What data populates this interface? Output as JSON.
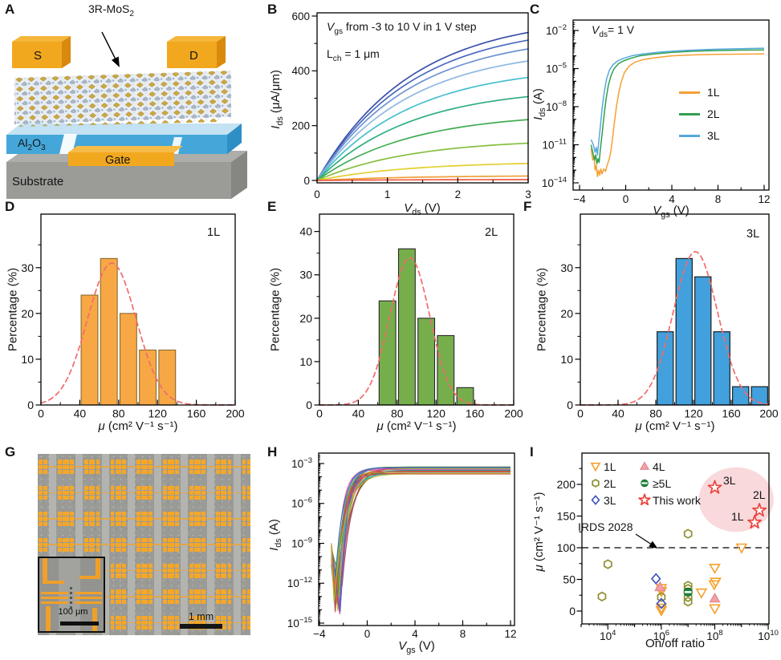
{
  "panels": {
    "A": {
      "label": "A",
      "crystal_label": {
        "main": "3R-MoS",
        "sub": "2"
      },
      "source": "S",
      "drain": "D",
      "oxide": {
        "p1": "Al",
        "s1": "2",
        "p2": "O",
        "s2": "3"
      },
      "gate": "Gate",
      "substrate": "Substrate"
    },
    "B": {
      "label": "B",
      "ann_line1": {
        "it": "V",
        "sub": "gs",
        "rest": " from -3 to 10 V in 1 V step"
      },
      "ann_line2": {
        "main": "L",
        "sub": "ch",
        "rest": " = 1 μm"
      },
      "ylabel": {
        "it": "I",
        "sub": "ds",
        "rest": " (μA/μm)"
      },
      "xlabel": {
        "it": "V",
        "sub": "ds",
        "rest": " (V)"
      }
    },
    "C": {
      "label": "C",
      "ann": {
        "it": "V",
        "sub": "ds",
        "rest": "= 1 V"
      },
      "ylabel": {
        "it": "I",
        "sub": "ds",
        "rest": " (A)"
      },
      "xlabel": {
        "it": "V",
        "sub": "gs",
        "rest": " (V)"
      },
      "legend": [
        {
          "name": "1L"
        },
        {
          "name": "2L"
        },
        {
          "name": "3L"
        }
      ]
    },
    "D": {
      "label": "D",
      "corner": "1L",
      "ylabel": "Percentage (%)",
      "xlabel": {
        "it": "μ",
        "rest": " (cm² V⁻¹ s⁻¹)"
      }
    },
    "E": {
      "label": "E",
      "corner": "2L",
      "ylabel": "Percentage (%)",
      "xlabel": {
        "it": "μ",
        "rest": " (cm² V⁻¹ s⁻¹)"
      }
    },
    "F": {
      "label": "F",
      "corner": "3L",
      "ylabel": "Percentage (%)",
      "xlabel": {
        "it": "μ",
        "rest": " (cm² V⁻¹ s⁻¹)"
      }
    },
    "G": {
      "label": "G",
      "inset_scale": "100 μm",
      "main_scale": "1 mm"
    },
    "H": {
      "label": "H",
      "ylabel": {
        "it": "I",
        "sub": "ds",
        "rest": " (A)"
      },
      "xlabel": {
        "it": "V",
        "sub": "gs",
        "rest": " (V)"
      }
    },
    "I": {
      "label": "I",
      "ylabel": {
        "it": "μ",
        "rest": " (cm² V⁻¹ s⁻¹)"
      },
      "xlabel": "On/off ratio",
      "irds_label": "IRDS 2028",
      "legend": [
        {
          "name": "1L"
        },
        {
          "name": "2L"
        },
        {
          "name": "3L"
        },
        {
          "name": "4L"
        },
        {
          "name": "≥5L"
        },
        {
          "name": "This work"
        }
      ],
      "star_labels": [
        "3L",
        "2L",
        "1L"
      ]
    }
  },
  "chart_data": [
    {
      "panel": "B",
      "type": "line",
      "title": "Output characteristics",
      "xlabel": "Vds (V)",
      "ylabel": "Ids (uA/um)",
      "xlim": [
        0,
        3
      ],
      "ylim": [
        0,
        600
      ],
      "xticks": [
        0,
        1,
        2,
        3
      ],
      "yticks": [
        0,
        200,
        400,
        600
      ],
      "annotation": "Vgs from -3 to 10 V in 1 V step; Lch = 1 um",
      "series": [
        {
          "vgs_v": 10,
          "end_uA_um": 540,
          "color": "#3A50A8"
        },
        {
          "vgs_v": 9,
          "end_uA_um": 512,
          "color": "#4A6AC0"
        },
        {
          "vgs_v": 8,
          "end_uA_um": 480,
          "color": "#6E93D2"
        },
        {
          "vgs_v": 7,
          "end_uA_um": 436,
          "color": "#8FB8E2"
        },
        {
          "vgs_v": 6,
          "end_uA_um": 376,
          "color": "#46BFCE"
        },
        {
          "vgs_v": 5,
          "end_uA_um": 306,
          "color": "#2FAE7E"
        },
        {
          "vgs_v": 4,
          "end_uA_um": 222,
          "color": "#44AD54"
        },
        {
          "vgs_v": 3,
          "end_uA_um": 136,
          "color": "#86BE3F"
        },
        {
          "vgs_v": 2,
          "end_uA_um": 62,
          "color": "#E3CF2F"
        },
        {
          "vgs_v": 1,
          "end_uA_um": 16,
          "color": "#F0A03C"
        },
        {
          "vgs_v": 0,
          "end_uA_um": 3,
          "color": "#EE5B42"
        }
      ]
    },
    {
      "panel": "C",
      "type": "line",
      "title": "Transfer curves, Vds = 1 V",
      "xlabel": "Vgs (V)",
      "ylabel": "Ids (A), log scale",
      "xticks": [
        -4,
        0,
        4,
        8,
        12
      ],
      "ytick_exps": [
        -2,
        -5,
        -8,
        -11,
        -14
      ],
      "series": [
        {
          "name": "1L",
          "color": "#F5A033",
          "points": [
            [
              -3,
              -11.3
            ],
            [
              -2.85,
              -12.2
            ],
            [
              -2.75,
              -11.9
            ],
            [
              -2.65,
              -13.0
            ],
            [
              -2.55,
              -12.6
            ],
            [
              -2.45,
              -13.5
            ],
            [
              -2.35,
              -13.0
            ],
            [
              -2.25,
              -13.4
            ],
            [
              -2.15,
              -12.9
            ],
            [
              -2.05,
              -13.3
            ],
            [
              -1.9,
              -12.9
            ],
            [
              -1.75,
              -13.1
            ],
            [
              -1.6,
              -12.6
            ],
            [
              -1.45,
              -12.2
            ],
            [
              -1.3,
              -11.6
            ],
            [
              -1.15,
              -10.6
            ],
            [
              -1.0,
              -9.4
            ],
            [
              -0.8,
              -8.0
            ],
            [
              -0.6,
              -6.9
            ],
            [
              -0.4,
              -6.1
            ],
            [
              -0.1,
              -5.3
            ],
            [
              0.3,
              -4.8
            ],
            [
              0.8,
              -4.5
            ],
            [
              1.5,
              -4.3
            ],
            [
              2.5,
              -4.15
            ],
            [
              4,
              -4.0
            ],
            [
              6,
              -3.92
            ],
            [
              8,
              -3.88
            ],
            [
              10,
              -3.86
            ],
            [
              12,
              -3.85
            ]
          ]
        },
        {
          "name": "2L",
          "color": "#2FA04E",
          "points": [
            [
              -3,
              -11.0
            ],
            [
              -2.85,
              -11.6
            ],
            [
              -2.7,
              -12.2
            ],
            [
              -2.6,
              -11.8
            ],
            [
              -2.5,
              -12.5
            ],
            [
              -2.4,
              -12.1
            ],
            [
              -2.3,
              -12.4
            ],
            [
              -2.2,
              -11.4
            ],
            [
              -2.05,
              -10.2
            ],
            [
              -1.9,
              -8.9
            ],
            [
              -1.7,
              -7.4
            ],
            [
              -1.5,
              -6.3
            ],
            [
              -1.25,
              -5.5
            ],
            [
              -1.0,
              -5.0
            ],
            [
              -0.6,
              -4.6
            ],
            [
              -0.2,
              -4.4
            ],
            [
              0.4,
              -4.2
            ],
            [
              1.2,
              -4.0
            ],
            [
              2.5,
              -3.85
            ],
            [
              4,
              -3.72
            ],
            [
              6,
              -3.63
            ],
            [
              8,
              -3.58
            ],
            [
              10,
              -3.55
            ],
            [
              12,
              -3.53
            ]
          ]
        },
        {
          "name": "3L",
          "color": "#57A8DC",
          "points": [
            [
              -3,
              -10.6
            ],
            [
              -2.8,
              -11.0
            ],
            [
              -2.65,
              -11.6
            ],
            [
              -2.55,
              -11.2
            ],
            [
              -2.45,
              -11.8
            ],
            [
              -2.35,
              -10.9
            ],
            [
              -2.2,
              -9.6
            ],
            [
              -2.05,
              -8.2
            ],
            [
              -1.85,
              -6.8
            ],
            [
              -1.65,
              -5.8
            ],
            [
              -1.4,
              -5.1
            ],
            [
              -1.1,
              -4.7
            ],
            [
              -0.7,
              -4.4
            ],
            [
              -0.2,
              -4.2
            ],
            [
              0.5,
              -4.0
            ],
            [
              1.5,
              -3.85
            ],
            [
              3,
              -3.7
            ],
            [
              5,
              -3.58
            ],
            [
              7,
              -3.5
            ],
            [
              9,
              -3.45
            ],
            [
              12,
              -3.4
            ]
          ]
        }
      ]
    },
    {
      "panel": "D",
      "type": "bar",
      "title": "1L mobility distribution",
      "xlabel": "mu (cm2 V-1 s-1)",
      "ylabel": "Percentage (%)",
      "color": "#F7A845",
      "edge": "#8A6A2A",
      "bin_width": 20,
      "bars": [
        [
          40,
          24
        ],
        [
          60,
          32
        ],
        [
          80,
          20
        ],
        [
          100,
          12
        ],
        [
          120,
          12
        ]
      ],
      "fit": {
        "mu": 73,
        "sigma": 25,
        "peak": 31
      },
      "xticks": [
        0,
        40,
        80,
        120,
        160,
        200
      ],
      "yticks": [
        0,
        10,
        20,
        30
      ],
      "ymax": 41.7
    },
    {
      "panel": "E",
      "type": "bar",
      "title": "2L mobility distribution",
      "xlabel": "mu (cm2 V-1 s-1)",
      "ylabel": "Percentage (%)",
      "color": "#76AE4C",
      "edge": "#2A2A2A",
      "bin_width": 20,
      "bars": [
        [
          60,
          24
        ],
        [
          80,
          36
        ],
        [
          100,
          20
        ],
        [
          120,
          16
        ],
        [
          140,
          4
        ]
      ],
      "fit": {
        "mu": 93,
        "sigma": 20.5,
        "peak": 34
      },
      "xticks": [
        0,
        40,
        80,
        120,
        160,
        200
      ],
      "yticks": [
        0,
        10,
        20,
        30,
        40
      ],
      "ymax": 44
    },
    {
      "panel": "F",
      "type": "bar",
      "title": "3L mobility distribution",
      "xlabel": "mu (cm2 V-1 s-1)",
      "ylabel": "Percentage (%)",
      "color": "#42A0DC",
      "edge": "#101010",
      "bin_width": 20,
      "bars": [
        [
          80,
          16
        ],
        [
          100,
          32
        ],
        [
          120,
          28
        ],
        [
          140,
          16
        ],
        [
          160,
          4
        ],
        [
          180,
          4
        ]
      ],
      "fit": {
        "mu": 122,
        "sigma": 23.5,
        "peak": 33.5
      },
      "xticks": [
        0,
        40,
        80,
        120,
        160,
        200
      ],
      "yticks": [
        0,
        10,
        20,
        30
      ],
      "ymax": 41.7
    },
    {
      "panel": "H",
      "type": "line",
      "title": "Transfer curves of device array",
      "xlabel": "Vgs (V)",
      "ylabel": "Ids (A), log scale",
      "xticks": [
        -4,
        0,
        4,
        8,
        12
      ],
      "ytick_exps": [
        -3,
        -6,
        -9,
        -12,
        -15
      ],
      "curve_count": 30,
      "palette": [
        "#7B52A8",
        "#D63384",
        "#2AA8A0",
        "#E67E22",
        "#4C9F38",
        "#3F6BD6",
        "#D64541",
        "#C9B21F",
        "#38B6C9",
        "#E0559A",
        "#6B8E23",
        "#8A5A2B",
        "#5AC85A",
        "#9D4EDD",
        "#1F77B4",
        "#FF7F0E",
        "#2CA02C",
        "#D62728",
        "#9467BD",
        "#E377C2",
        "#BCBD22",
        "#17BECF"
      ]
    },
    {
      "panel": "I",
      "type": "scatter",
      "title": "Benchmark: mobility vs on/off ratio",
      "xlabel": "On/off ratio (log scale)",
      "ylabel": "mu (cm2 V-1 s-1)",
      "xtick_exps": [
        4,
        6,
        8,
        10
      ],
      "yticks": [
        0,
        50,
        100,
        150,
        200
      ],
      "reference_line": {
        "y": 100,
        "label": "IRDS 2028"
      },
      "highlight": {
        "cx_exp": 8.8,
        "cy_mu": 176,
        "rx_dec": 1.4,
        "ry_mu": 51,
        "fill": "#F8D2D5"
      },
      "series": [
        {
          "name": "1L",
          "marker": "triangle-down",
          "color": "#F5A02B",
          "filled": false,
          "points": [
            [
              6,
              36
            ],
            [
              6,
              31
            ],
            [
              6,
              5
            ],
            [
              6,
              1
            ],
            [
              7.5,
              29
            ],
            [
              8,
              68
            ],
            [
              8.03,
              46
            ],
            [
              7.98,
              42
            ],
            [
              8,
              4
            ],
            [
              9,
              100
            ]
          ]
        },
        {
          "name": "2L",
          "marker": "hexagon",
          "color": "#8F8F33",
          "filled": false,
          "points": [
            [
              3.78,
              23
            ],
            [
              4,
              74
            ],
            [
              6,
              22
            ],
            [
              7,
              122
            ],
            [
              7,
              40
            ],
            [
              7,
              35
            ],
            [
              7,
              22
            ],
            [
              7,
              15
            ]
          ]
        },
        {
          "name": "3L",
          "marker": "diamond",
          "color": "#3A50C0",
          "filled": false,
          "points": [
            [
              5.8,
              51
            ],
            [
              6,
              12
            ]
          ]
        },
        {
          "name": "4L",
          "marker": "triangle-up",
          "color": "#F2A0A8",
          "filled": true,
          "edge": "#E08890",
          "points": [
            [
              5.95,
              38
            ],
            [
              8,
              20
            ]
          ]
        },
        {
          "name": "≥5L",
          "marker": "circle-half",
          "color": "#1F8A3C",
          "filled": true,
          "points": [
            [
              7,
              30
            ]
          ]
        },
        {
          "name": "This work",
          "marker": "star",
          "color": "#E8453C",
          "filled": false,
          "points": [
            [
              8.0,
              195
            ],
            [
              9.67,
              159
            ],
            [
              9.49,
              140
            ]
          ],
          "point_labels": [
            "3L",
            "2L",
            "1L"
          ]
        }
      ]
    }
  ]
}
